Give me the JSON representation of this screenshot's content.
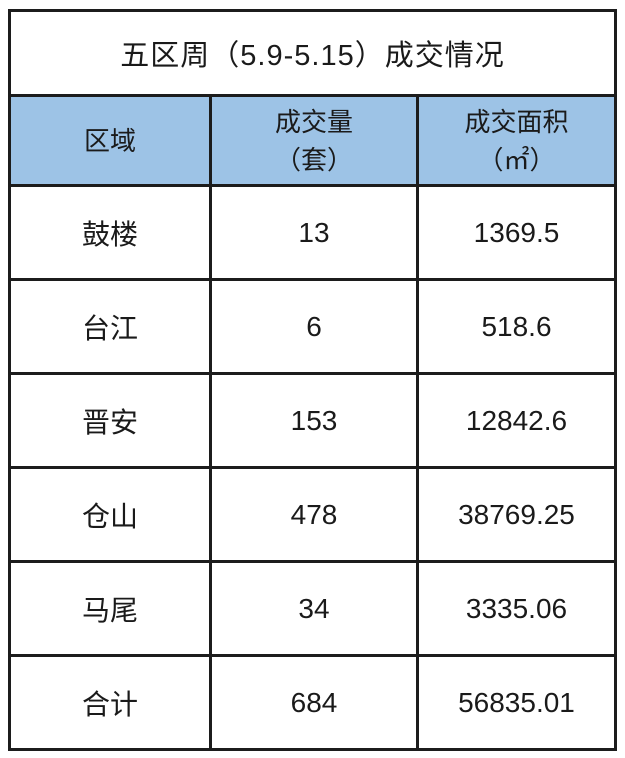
{
  "title": "五区周（5.9-5.15）成交情况",
  "colors": {
    "header_bg": "#9DC3E6",
    "border": "#1c1c1c",
    "text": "#1a1a1a",
    "cell_bg": "#ffffff"
  },
  "table": {
    "headers": {
      "region": "区域",
      "volume_line1": "成交量",
      "volume_line2": "（套）",
      "area_line1": "成交面积",
      "area_line2": "（㎡）"
    },
    "rows": [
      {
        "region": "鼓楼",
        "volume": "13",
        "area": "1369.5"
      },
      {
        "region": "台江",
        "volume": "6",
        "area": "518.6"
      },
      {
        "region": "晋安",
        "volume": "153",
        "area": "12842.6"
      },
      {
        "region": "仓山",
        "volume": "478",
        "area": "38769.25"
      },
      {
        "region": "马尾",
        "volume": "34",
        "area": "3335.06"
      },
      {
        "region": "合计",
        "volume": "684",
        "area": "56835.01"
      }
    ]
  },
  "chart_data": {
    "type": "table",
    "title": "五区周（5.9-5.15）成交情况",
    "columns": [
      "区域",
      "成交量（套）",
      "成交面积（㎡）"
    ],
    "rows": [
      [
        "鼓楼",
        13,
        1369.5
      ],
      [
        "台江",
        6,
        518.6
      ],
      [
        "晋安",
        153,
        12842.6
      ],
      [
        "仓山",
        478,
        38769.25
      ],
      [
        "马尾",
        34,
        3335.06
      ],
      [
        "合计",
        684,
        56835.01
      ]
    ]
  }
}
